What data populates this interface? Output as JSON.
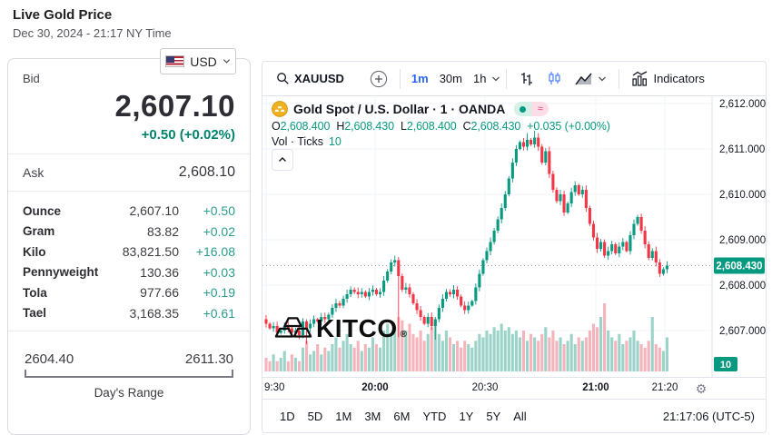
{
  "header": {
    "title": "Live Gold Price",
    "subtitle": "Dec 30, 2024 - 21:17 NY Time"
  },
  "currency_selector": {
    "label": "USD"
  },
  "quote": {
    "bid_label": "Bid",
    "bid": "2,607.10",
    "change": "+0.50 (+0.02%)",
    "ask_label": "Ask",
    "ask": "2,608.10",
    "units": [
      {
        "label": "Ounce",
        "value": "2,607.10",
        "change": "+0.50"
      },
      {
        "label": "Gram",
        "value": "83.82",
        "change": "+0.02"
      },
      {
        "label": "Kilo",
        "value": "83,821.50",
        "change": "+16.08"
      },
      {
        "label": "Pennyweight",
        "value": "130.36",
        "change": "+0.03"
      },
      {
        "label": "Tola",
        "value": "977.66",
        "change": "+0.19"
      },
      {
        "label": "Tael",
        "value": "3,168.35",
        "change": "+0.61"
      }
    ],
    "range": {
      "low": "2604.40",
      "high": "2611.30",
      "label": "Day's Range"
    }
  },
  "chart_toolbar": {
    "symbol": "XAUUSD",
    "intervals": [
      "1m",
      "30m",
      "1h"
    ],
    "active_interval": "1m",
    "indicators_label": "Indicators"
  },
  "symbol_info": {
    "name": "Gold Spot / U.S. Dollar · 1 · OANDA",
    "ohlc": {
      "o_label": "O",
      "o": "2,608.400",
      "h_label": "H",
      "h": "2,608.430",
      "l_label": "L",
      "l": "2,608.400",
      "c_label": "C",
      "c": "2,608.430",
      "change": "+0.035 (+0.00%)"
    },
    "vol_label": "Vol · Ticks",
    "vol_value": "10"
  },
  "watermark": {
    "brand": "KITCO",
    "reg": "®"
  },
  "chart_axis": {
    "x_ticks": [
      {
        "label": "9:30",
        "bold": false
      },
      {
        "label": "20:00",
        "bold": true
      },
      {
        "label": "20:30",
        "bold": false
      },
      {
        "label": "21:00",
        "bold": true
      },
      {
        "label": "21:20",
        "bold": false
      }
    ]
  },
  "bottom_bar": {
    "ranges": [
      "1D",
      "5D",
      "1M",
      "3M",
      "6M",
      "YTD",
      "1Y",
      "5Y",
      "All"
    ],
    "clock": "21:17:06 (UTC-5)"
  },
  "chart_data": {
    "type": "candlestick",
    "title": "Gold Spot / U.S. Dollar",
    "interval": "1",
    "exchange": "OANDA",
    "x_range": [
      "19:30",
      "21:20"
    ],
    "y_axis": [
      {
        "label": "2,612.000",
        "price": 2612
      },
      {
        "label": "2,611.000",
        "price": 2611
      },
      {
        "label": "2,610.000",
        "price": 2610
      },
      {
        "label": "2,609.000",
        "price": 2609
      },
      {
        "label": "2,608.000",
        "price": 2608
      },
      {
        "label": "2,607.000",
        "price": 2607
      }
    ],
    "last_price": 2608.43,
    "last_price_label": "2,608.430",
    "volume_tag": "10",
    "first_open": 2607.25,
    "closes": [
      2607.15,
      2607.05,
      2607.1,
      2606.95,
      2607.0,
      2607.1,
      2607.05,
      2606.95,
      2607.0,
      2606.9,
      2607.2,
      2607.05,
      2607.15,
      2607.25,
      2607.2,
      2607.3,
      2607.25,
      2607.35,
      2607.5,
      2607.6,
      2607.55,
      2607.7,
      2607.8,
      2607.9,
      2607.85,
      2607.8,
      2607.85,
      2607.75,
      2607.85,
      2607.9,
      2607.8,
      2607.85,
      2608.1,
      2608.3,
      2608.5,
      2608.55,
      2608.2,
      2607.9,
      2607.95,
      2607.8,
      2607.6,
      2607.45,
      2607.3,
      2607.15,
      2607.3,
      2607.1,
      2607.25,
      2607.5,
      2607.7,
      2607.85,
      2607.8,
      2607.9,
      2607.75,
      2607.55,
      2607.45,
      2607.55,
      2607.65,
      2607.95,
      2608.25,
      2608.55,
      2608.75,
      2608.95,
      2609.2,
      2609.45,
      2609.7,
      2610.0,
      2610.35,
      2610.7,
      2611.0,
      2611.15,
      2611.05,
      2611.2,
      2611.1,
      2611.25,
      2611.05,
      2610.7,
      2610.95,
      2610.45,
      2610.1,
      2609.85,
      2610.0,
      2609.6,
      2609.8,
      2610.05,
      2610.2,
      2610.0,
      2610.1,
      2609.7,
      2609.35,
      2609.05,
      2608.8,
      2608.95,
      2608.65,
      2608.75,
      2608.9,
      2608.7,
      2608.85,
      2608.95,
      2608.75,
      2609.1,
      2609.35,
      2609.5,
      2609.2,
      2608.9,
      2608.6,
      2608.75,
      2608.5,
      2608.25,
      2608.35,
      2608.43
    ],
    "wick_overrides": [
      {
        "i": 11,
        "low": 2606.7
      },
      {
        "i": 36,
        "low": 2606.85
      },
      {
        "i": 46,
        "low": 2606.8
      },
      {
        "i": 71,
        "high": 2611.35
      },
      {
        "i": 73,
        "high": 2611.4
      }
    ],
    "volumes": [
      4,
      3,
      5,
      3,
      4,
      6,
      3,
      5,
      4,
      3,
      7,
      9,
      5,
      6,
      8,
      5,
      7,
      6,
      8,
      10,
      7,
      9,
      11,
      8,
      7,
      9,
      6,
      8,
      7,
      10,
      8,
      7,
      12,
      14,
      11,
      13,
      16,
      15,
      12,
      14,
      11,
      10,
      12,
      9,
      11,
      13,
      15,
      11,
      9,
      12,
      10,
      8,
      9,
      7,
      9,
      8,
      7,
      9,
      11,
      10,
      12,
      11,
      13,
      12,
      14,
      12,
      13,
      11,
      12,
      10,
      12,
      9,
      11,
      10,
      9,
      11,
      13,
      10,
      12,
      9,
      10,
      8,
      9,
      11,
      8,
      10,
      9,
      10,
      12,
      14,
      13,
      16,
      20,
      12,
      10,
      9,
      11,
      8,
      9,
      10,
      12,
      9,
      8,
      7,
      9,
      16,
      8,
      7,
      6,
      10
    ],
    "colors": {
      "up": "#089981",
      "down": "#f23645",
      "vol_up": "#9bd3c8",
      "vol_down": "#f5b3bb"
    }
  }
}
